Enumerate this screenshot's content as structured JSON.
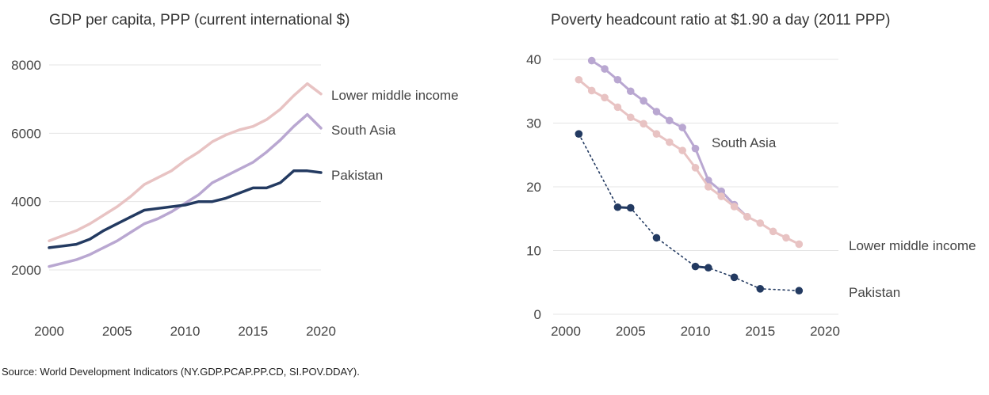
{
  "chart_data": [
    {
      "type": "line",
      "title": "GDP per capita, PPP (current international $)",
      "xlabel": "",
      "ylabel": "",
      "xlim": [
        2000,
        2020
      ],
      "ylim": [
        1000,
        8500
      ],
      "x_ticks": [
        2000,
        2005,
        2010,
        2015,
        2020
      ],
      "y_ticks": [
        2000,
        4000,
        6000,
        8000
      ],
      "grid": true,
      "legend": "direct labels at line ends",
      "series": [
        {
          "name": "Lower middle income",
          "color": "#e8c3c3",
          "x": [
            2000,
            2001,
            2002,
            2003,
            2004,
            2005,
            2006,
            2007,
            2008,
            2009,
            2010,
            2011,
            2012,
            2013,
            2014,
            2015,
            2016,
            2017,
            2018,
            2019,
            2020
          ],
          "y": [
            2850,
            3000,
            3150,
            3350,
            3600,
            3850,
            4150,
            4500,
            4700,
            4900,
            5200,
            5450,
            5750,
            5950,
            6100,
            6200,
            6400,
            6700,
            7100,
            7450,
            7150
          ]
        },
        {
          "name": "South Asia",
          "color": "#b9a7d1",
          "x": [
            2000,
            2001,
            2002,
            2003,
            2004,
            2005,
            2006,
            2007,
            2008,
            2009,
            2010,
            2011,
            2012,
            2013,
            2014,
            2015,
            2016,
            2017,
            2018,
            2019,
            2020
          ],
          "y": [
            2100,
            2200,
            2300,
            2450,
            2650,
            2850,
            3100,
            3350,
            3500,
            3700,
            3950,
            4200,
            4550,
            4750,
            4950,
            5150,
            5450,
            5800,
            6200,
            6550,
            6150
          ]
        },
        {
          "name": "Pakistan",
          "color": "#233a61",
          "x": [
            2000,
            2001,
            2002,
            2003,
            2004,
            2005,
            2006,
            2007,
            2008,
            2009,
            2010,
            2011,
            2012,
            2013,
            2014,
            2015,
            2016,
            2017,
            2018,
            2019,
            2020
          ],
          "y": [
            2650,
            2700,
            2750,
            2900,
            3150,
            3350,
            3550,
            3750,
            3800,
            3850,
            3900,
            4000,
            4000,
            4100,
            4250,
            4400,
            4400,
            4550,
            4900,
            4900,
            4850
          ]
        }
      ]
    },
    {
      "type": "line",
      "title": "Poverty headcount ratio at $1.90 a day (2011 PPP)",
      "xlabel": "",
      "ylabel": "",
      "xlim": [
        2000,
        2020
      ],
      "ylim": [
        0,
        42
      ],
      "x_ticks": [
        2000,
        2005,
        2010,
        2015,
        2020
      ],
      "y_ticks": [
        0,
        10,
        20,
        30,
        40
      ],
      "grid": true,
      "legend": "direct labels",
      "series": [
        {
          "name": "South Asia",
          "color": "#b9a7d1",
          "style": "solid with markers",
          "x": [
            2002,
            2003,
            2004,
            2005,
            2006,
            2007,
            2008,
            2009,
            2010,
            2011,
            2012,
            2013,
            2014
          ],
          "y": [
            39.8,
            38.5,
            36.8,
            35.0,
            33.5,
            31.8,
            30.4,
            29.3,
            26.0,
            21.0,
            19.3,
            17.2,
            15.3
          ]
        },
        {
          "name": "Lower middle income",
          "color": "#e8c3c3",
          "style": "solid with markers",
          "x": [
            2001,
            2002,
            2003,
            2004,
            2005,
            2006,
            2007,
            2008,
            2009,
            2010,
            2011,
            2012,
            2013,
            2014,
            2015,
            2016,
            2017,
            2018
          ],
          "y": [
            36.8,
            35.1,
            34.0,
            32.5,
            30.9,
            29.9,
            28.3,
            27.0,
            25.7,
            23.0,
            20.0,
            18.5,
            16.9,
            15.3,
            14.3,
            13.0,
            12.0,
            11.0
          ]
        },
        {
          "name": "Pakistan",
          "color": "#233a61",
          "style": "dotted with markers",
          "x": [
            2001,
            2004,
            2005,
            2007,
            2010,
            2011,
            2013,
            2015,
            2018
          ],
          "y": [
            28.3,
            16.8,
            16.7,
            12.0,
            7.5,
            7.3,
            5.8,
            4.0,
            3.7
          ]
        }
      ]
    }
  ],
  "source": "Source: World Development Indicators (NY.GDP.PCAP.PP.CD, SI.POV.DDAY)."
}
